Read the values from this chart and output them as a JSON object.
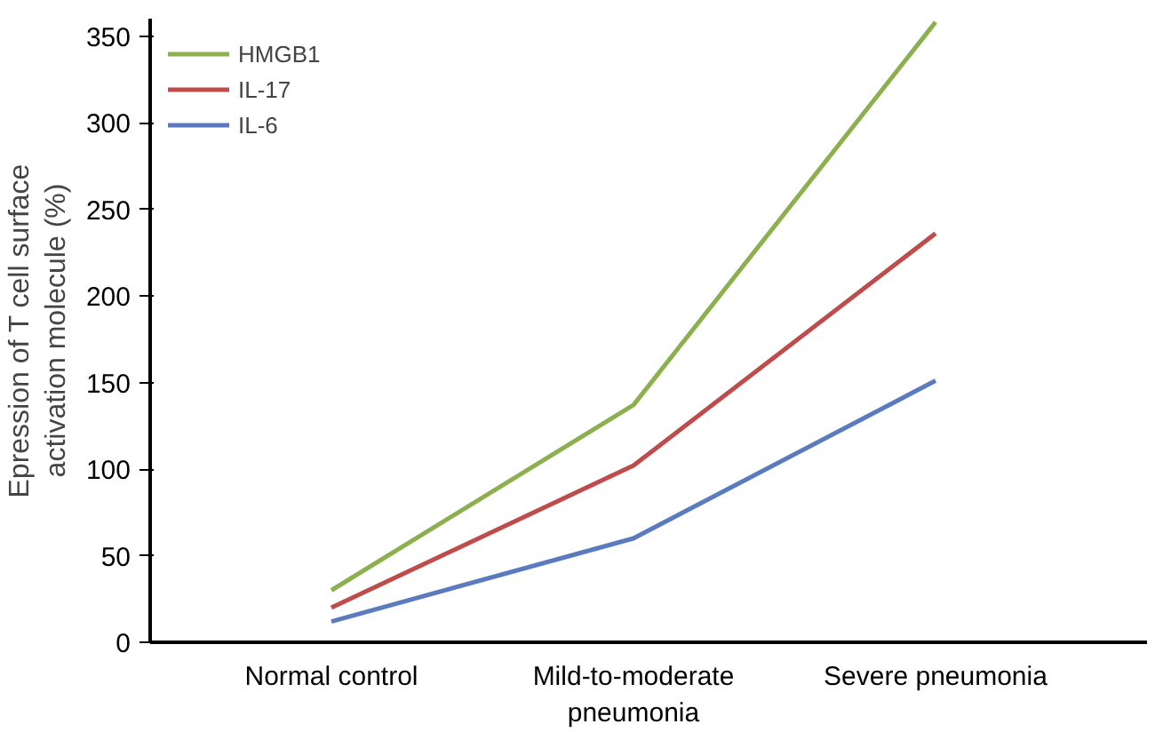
{
  "chart_data": {
    "type": "line",
    "ylabel": "Epression of T cell surface\nactivation molecule (%)",
    "categories": [
      "Normal control",
      "Mild-to-moderate\npneumonia",
      "Severe pneumonia"
    ],
    "series": [
      {
        "name": "HMGB1",
        "color": "#8db04f",
        "values": [
          30,
          137,
          358
        ]
      },
      {
        "name": "IL-17",
        "color": "#bf4b4b",
        "values": [
          20,
          102,
          236
        ]
      },
      {
        "name": "IL-6",
        "color": "#5b7bbf",
        "values": [
          12,
          60,
          151
        ]
      }
    ],
    "ylim": [
      0,
      360
    ],
    "yticks": [
      0,
      50,
      100,
      150,
      200,
      250,
      300,
      350
    ],
    "grid": false,
    "legend": "top left",
    "marker": "none",
    "line_style": "solid"
  }
}
